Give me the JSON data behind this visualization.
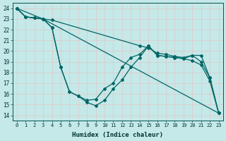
{
  "xlabel": "Humidex (Indice chaleur)",
  "background_color": "#c5e8e8",
  "grid_color": "#e0c8c8",
  "line_color": "#006666",
  "xlim": [
    -0.5,
    23.5
  ],
  "ylim": [
    13.5,
    24.5
  ],
  "xticks": [
    0,
    1,
    2,
    3,
    4,
    5,
    6,
    7,
    8,
    9,
    10,
    11,
    12,
    13,
    14,
    15,
    16,
    17,
    18,
    19,
    20,
    21,
    22,
    23
  ],
  "yticks": [
    14,
    15,
    16,
    17,
    18,
    19,
    20,
    21,
    22,
    23,
    24
  ],
  "curves": [
    {
      "x": [
        0,
        3,
        23
      ],
      "y": [
        24,
        23.0,
        14.2
      ]
    },
    {
      "x": [
        0,
        1,
        2,
        3,
        4,
        14,
        15,
        16,
        17,
        18,
        19,
        20,
        21,
        22,
        23
      ],
      "y": [
        24,
        23.2,
        23.1,
        23.0,
        22.9,
        20.5,
        20.3,
        19.8,
        19.7,
        19.5,
        19.4,
        19.6,
        19.6,
        17.5,
        14.2
      ]
    },
    {
      "x": [
        0,
        1,
        2,
        3,
        4,
        5,
        6,
        7,
        8,
        9,
        10,
        11,
        12,
        13,
        14,
        15,
        16,
        17,
        18,
        19,
        20,
        21,
        22,
        23
      ],
      "y": [
        24,
        23.2,
        23.1,
        23.0,
        22.2,
        18.5,
        16.2,
        15.8,
        15.4,
        15.5,
        16.5,
        17.0,
        18.5,
        19.4,
        19.7,
        20.5,
        19.6,
        19.5,
        19.4,
        19.3,
        19.6,
        19.0,
        17.5,
        14.2
      ]
    },
    {
      "x": [
        0,
        1,
        2,
        3,
        4,
        5,
        6,
        7,
        8,
        9,
        10,
        11,
        12,
        13,
        14,
        15,
        16,
        17,
        18,
        19,
        20,
        21,
        22,
        23
      ],
      "y": [
        24,
        23.2,
        23.1,
        23.0,
        22.2,
        18.5,
        16.2,
        15.8,
        15.2,
        14.9,
        15.4,
        16.5,
        17.3,
        18.5,
        19.4,
        20.5,
        19.6,
        19.5,
        19.4,
        19.3,
        19.1,
        18.7,
        17.2,
        14.2
      ]
    }
  ]
}
